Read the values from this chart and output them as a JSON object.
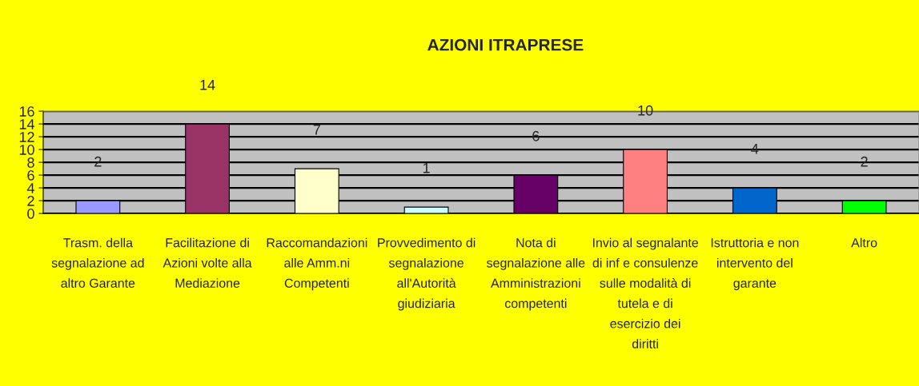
{
  "chart_data": {
    "type": "bar",
    "title": "AZIONI ITRAPRESE",
    "categories": [
      "Trasm. della segnalazione ad altro Garante",
      "Facilitazione di Azioni volte alla Mediazione",
      "Raccomandazioni alle Amm.ni Competenti",
      "Provvedimento di segnalazione all'Autorità giudiziaria",
      "Nota di segnalazione alle Amministrazioni competenti",
      "Invio al segnalante di inf e consulenze sulle modalità di tutela e di esercizio dei diritti",
      "Istruttoria e non intervento del garante",
      "Altro"
    ],
    "values": [
      2,
      14,
      7,
      1,
      6,
      10,
      4,
      2
    ],
    "colors": [
      "#9999ff",
      "#993366",
      "#ffffcc",
      "#ccffff",
      "#660066",
      "#ff8080",
      "#0066cc",
      "#00ff00"
    ],
    "ylim": [
      0,
      16
    ],
    "yticks": [
      0,
      2,
      4,
      6,
      8,
      10,
      12,
      14,
      16
    ],
    "grid": "y",
    "data_labels": true
  }
}
